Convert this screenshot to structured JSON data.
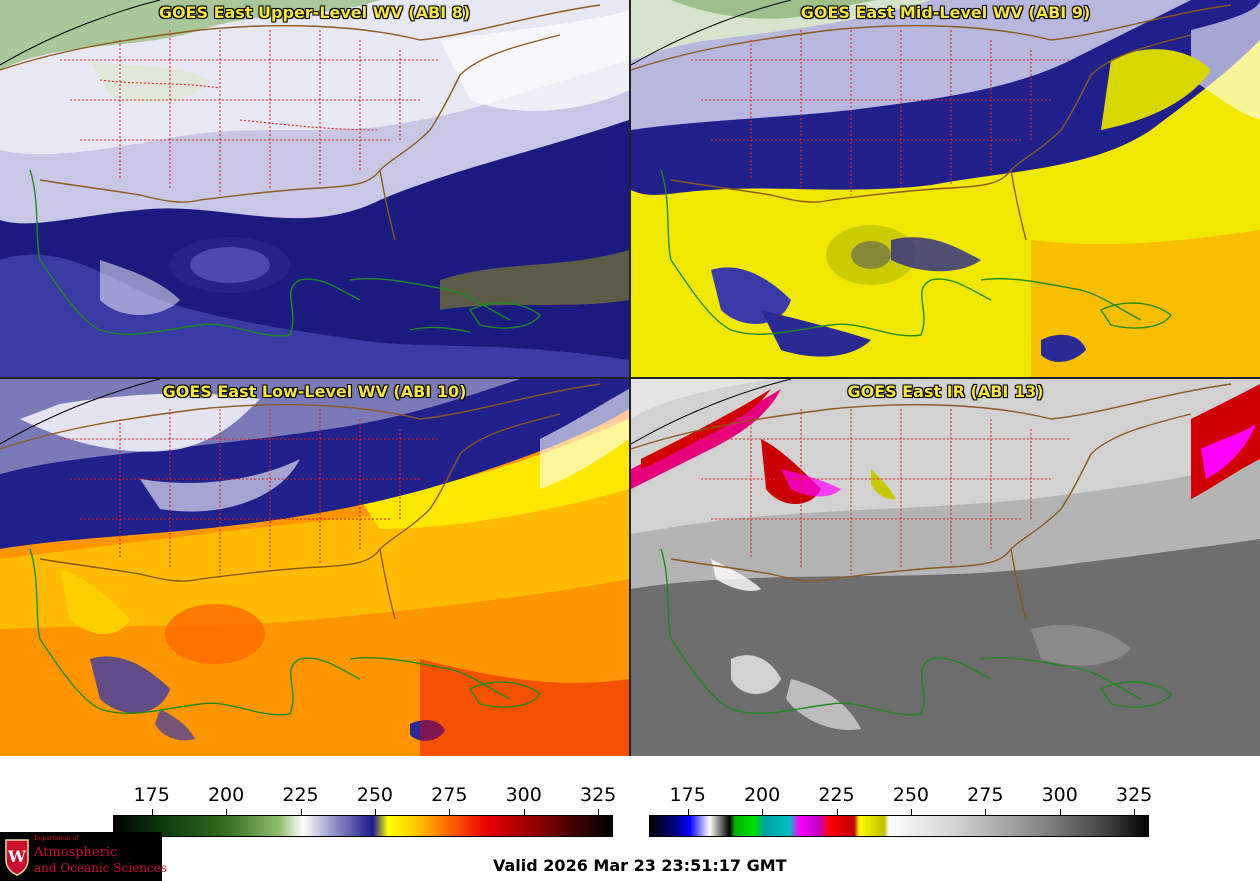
{
  "panels": [
    {
      "title": "GOES East Upper-Level WV (ABI 8)",
      "band": "ABI 8",
      "type": "wv"
    },
    {
      "title": "GOES East Mid-Level WV (ABI 9)",
      "band": "ABI 9",
      "type": "wv"
    },
    {
      "title": "GOES East Low-Level WV (ABI 10)",
      "band": "ABI 10",
      "type": "wv"
    },
    {
      "title": "GOES East IR (ABI 13)",
      "band": "ABI 13",
      "type": "ir"
    }
  ],
  "colorbars": [
    {
      "ticks": [
        "175",
        "200",
        "225",
        "250",
        "275",
        "300",
        "325"
      ],
      "range": [
        162,
        330
      ],
      "palette": "water-vapor"
    },
    {
      "ticks": [
        "175",
        "200",
        "225",
        "250",
        "275",
        "300",
        "325"
      ],
      "range": [
        162,
        330
      ],
      "palette": "infrared"
    }
  ],
  "footer": {
    "valid": "Valid 2026 Mar 23 23:51:17 GMT"
  },
  "logo": {
    "line1": "Department of",
    "line2": "Atmospheric",
    "line3": "and Oceanic Sciences",
    "crest_letter": "W"
  },
  "colors": {
    "title": "#f5e642",
    "state_borders": "#e02020",
    "country_borders": "#8b5a1e",
    "coast_borders": "#1e8c1e",
    "logo_text": "#c8102e"
  }
}
